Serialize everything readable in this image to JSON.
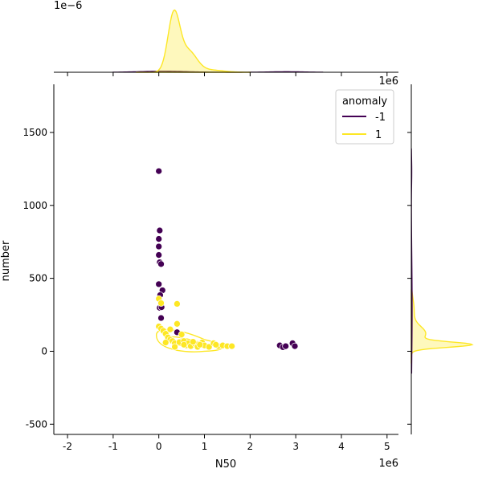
{
  "chart_data": {
    "type": "scatter",
    "xlabel": "N50",
    "ylabel": "number",
    "x_offset_text": "1e6",
    "y_offset_text": "1e6",
    "top_marginal_offset_text": "1e−6",
    "xlim": [
      -2.3,
      5.25
    ],
    "ylim": [
      -570,
      1830
    ],
    "x_ticks": [
      -2,
      -1,
      0,
      1,
      2,
      3,
      4,
      5
    ],
    "y_ticks": [
      -500,
      0,
      500,
      1000,
      1500
    ],
    "legend": {
      "title": "anomaly",
      "position": "top-right"
    },
    "series": [
      {
        "name": "-1",
        "color": "#440154",
        "points": [
          [
            0.0,
            1235
          ],
          [
            0.02,
            828
          ],
          [
            0.0,
            770
          ],
          [
            0.0,
            718
          ],
          [
            0.0,
            660
          ],
          [
            0.02,
            610
          ],
          [
            0.05,
            598
          ],
          [
            0.0,
            460
          ],
          [
            0.08,
            418
          ],
          [
            0.03,
            385
          ],
          [
            0.02,
            298
          ],
          [
            0.06,
            302
          ],
          [
            0.05,
            228
          ],
          [
            0.4,
            130
          ],
          [
            2.65,
            40
          ],
          [
            2.72,
            28
          ],
          [
            2.78,
            35
          ],
          [
            2.93,
            55
          ],
          [
            2.98,
            35
          ]
        ]
      },
      {
        "name": "1",
        "color": "#fde725",
        "points": [
          [
            0.0,
            360
          ],
          [
            0.05,
            330
          ],
          [
            0.4,
            325
          ],
          [
            0.4,
            188
          ],
          [
            0.0,
            170
          ],
          [
            0.05,
            155
          ],
          [
            0.1,
            140
          ],
          [
            0.15,
            120
          ],
          [
            0.2,
            95
          ],
          [
            0.25,
            80
          ],
          [
            0.3,
            70
          ],
          [
            0.35,
            55
          ],
          [
            0.45,
            62
          ],
          [
            0.5,
            115
          ],
          [
            0.55,
            70
          ],
          [
            0.6,
            40
          ],
          [
            0.65,
            55
          ],
          [
            0.7,
            35
          ],
          [
            0.8,
            50
          ],
          [
            0.85,
            30
          ],
          [
            0.95,
            60
          ],
          [
            1.0,
            40
          ],
          [
            1.1,
            30
          ],
          [
            1.2,
            55
          ],
          [
            1.3,
            35
          ],
          [
            1.4,
            40
          ],
          [
            1.5,
            35
          ],
          [
            1.6,
            35
          ],
          [
            0.35,
            30
          ],
          [
            0.15,
            60
          ],
          [
            0.25,
            150
          ],
          [
            0.55,
            45
          ],
          [
            0.9,
            45
          ],
          [
            1.25,
            45
          ],
          [
            0.75,
            65
          ]
        ]
      }
    ]
  },
  "colors": {
    "anomaly_neg": "#440154",
    "anomaly_pos": "#fde725",
    "background": "#ffffff"
  }
}
